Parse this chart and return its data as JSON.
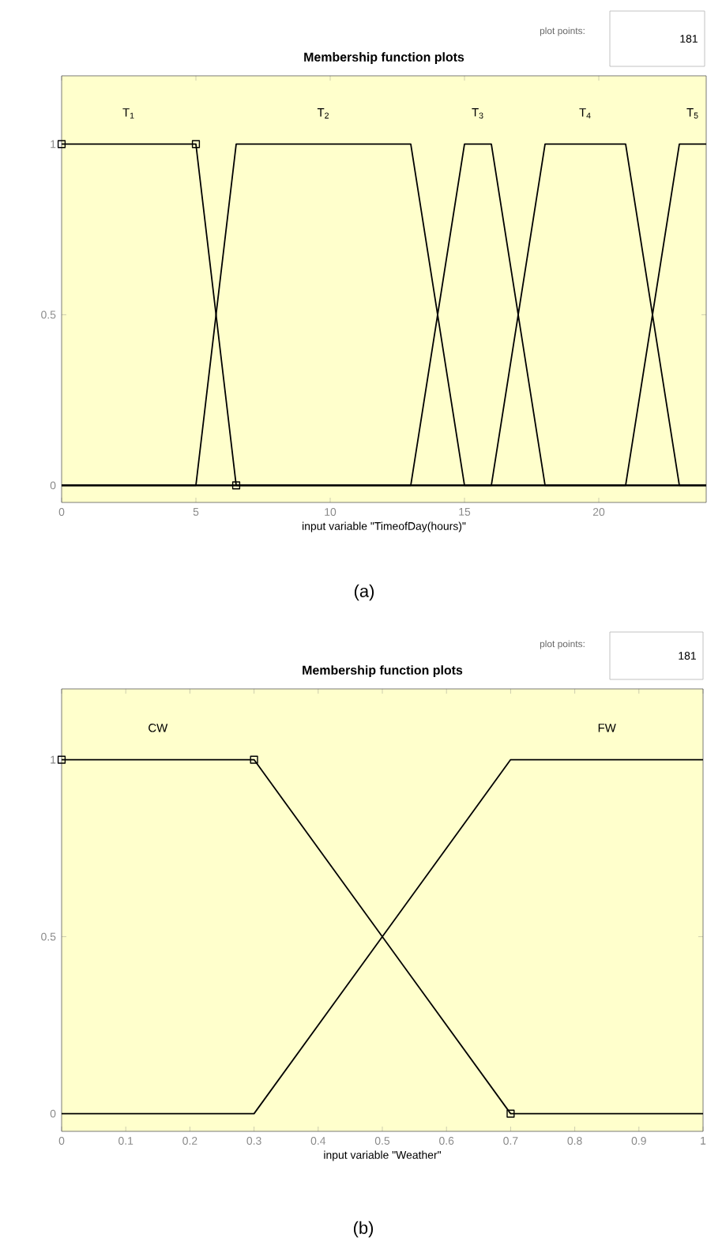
{
  "chart_data": [
    {
      "type": "line",
      "title": "Membership function plots",
      "xlabel": "input variable \"TimeofDay(hours)\"",
      "xlim": [
        0,
        24
      ],
      "ylim": [
        -0.05,
        1.2
      ],
      "xticks": [
        0,
        5,
        10,
        15,
        20
      ],
      "yticks": [
        0,
        0.5,
        1
      ],
      "grid": false,
      "annotations": [
        "plot points:",
        "181",
        "(a)"
      ],
      "series": [
        {
          "name": "T$_{1}$",
          "color": "#000000",
          "marker": "square",
          "x": [
            0,
            5,
            6.5,
            24
          ],
          "values": [
            1,
            1,
            0,
            0
          ]
        },
        {
          "name": "T$_{2}$",
          "color": "#000000",
          "x": [
            0,
            5,
            6.5,
            13,
            15,
            24
          ],
          "values": [
            0,
            0,
            1,
            1,
            0,
            0
          ]
        },
        {
          "name": "T$_{3}$",
          "color": "#000000",
          "x": [
            0,
            13,
            15,
            16,
            18,
            24
          ],
          "values": [
            0,
            0,
            1,
            1,
            0,
            0
          ]
        },
        {
          "name": "T$_{4}$",
          "color": "#000000",
          "x": [
            0,
            16,
            18,
            21,
            23,
            24
          ],
          "values": [
            0,
            0,
            1,
            1,
            0,
            0
          ]
        },
        {
          "name": "T$_{5}$",
          "color": "#000000",
          "x": [
            0,
            21,
            23,
            24
          ],
          "values": [
            0,
            0,
            1,
            1
          ]
        }
      ]
    },
    {
      "type": "line",
      "title": "Membership function plots",
      "xlabel": "input variable \"Weather\"",
      "xlim": [
        0,
        1
      ],
      "ylim": [
        -0.05,
        1.2
      ],
      "xticks": [
        0,
        0.1,
        0.2,
        0.3,
        0.4,
        0.5,
        0.6,
        0.7,
        0.8,
        0.9,
        1
      ],
      "yticks": [
        0,
        0.5,
        1
      ],
      "grid": false,
      "annotations": [
        "plot points:",
        "181",
        "(b)"
      ],
      "series": [
        {
          "name": "CW",
          "color": "#000000",
          "marker": "square",
          "x": [
            0,
            0.3,
            0.7,
            1
          ],
          "values": [
            1,
            1,
            0,
            0
          ]
        },
        {
          "name": "FW",
          "color": "#000000",
          "x": [
            0,
            0.3,
            0.7,
            1
          ],
          "values": [
            0,
            0,
            1,
            1
          ]
        }
      ]
    }
  ]
}
